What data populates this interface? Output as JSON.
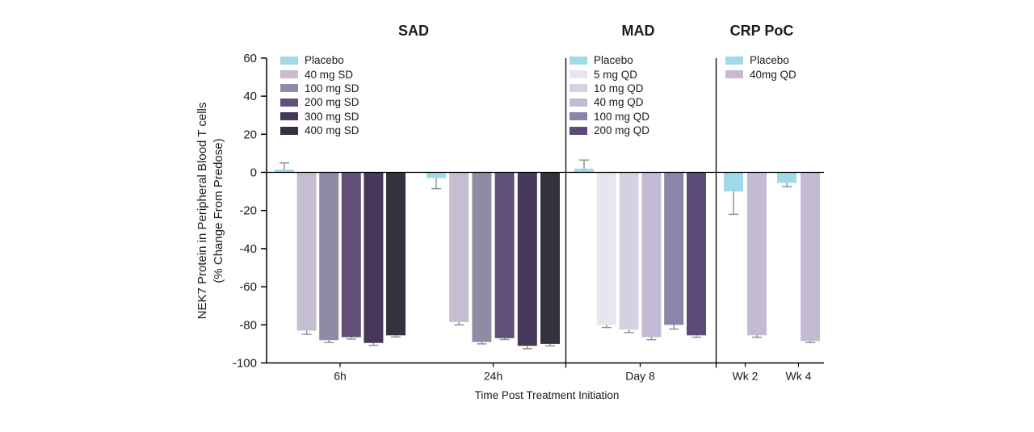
{
  "y_axis": {
    "title_line1": "NEK7 Protein in Peripheral Blood T cells",
    "title_line2": "(% Change From Predose)"
  },
  "x_axis": {
    "title": "Time Post Treatment Initiation"
  },
  "colors": {
    "placebo": "#a0d9e8",
    "axis": "#000000",
    "text": "#1a1a1a",
    "error_bar": "#8b8b8b"
  },
  "chart_data": {
    "type": "bar",
    "ylabel": "NEK7 Protein in Peripheral Blood T cells (% Change From Predose)",
    "xlabel": "Time Post Treatment Initiation",
    "ylim": [
      -100,
      60
    ],
    "y_ticks": [
      60,
      40,
      20,
      0,
      -20,
      -40,
      -60,
      -80,
      -100
    ],
    "grid": false,
    "legend_position": "top-left-of-each-panel",
    "error_bar_color": "#8b8b8b",
    "panels": [
      {
        "title": "SAD",
        "series": [
          {
            "name": "Placebo",
            "color": "#a0d9e8"
          },
          {
            "name": "40 mg SD",
            "color": "#c5bed0"
          },
          {
            "name": "100 mg SD",
            "color": "#908ba5"
          },
          {
            "name": "200 mg SD",
            "color": "#614f78"
          },
          {
            "name": "300 mg SD",
            "color": "#463859"
          },
          {
            "name": "400 mg SD",
            "color": "#333340"
          }
        ],
        "groups": [
          {
            "label": "6h",
            "values": [
              1.5,
              -83,
              -88,
              -86.5,
              -89.5,
              -85.5
            ],
            "errors": [
              3.5,
              2,
              1.3,
              1,
              1.2,
              0.8
            ]
          },
          {
            "label": "24h",
            "values": [
              -3,
              -78.5,
              -89,
              -87,
              -91,
              -90
            ],
            "errors": [
              5.5,
              1.5,
              1,
              0.7,
              1.5,
              1
            ]
          }
        ]
      },
      {
        "title": "MAD",
        "series": [
          {
            "name": "Placebo",
            "color": "#a0d9e8"
          },
          {
            "name": "5 mg QD",
            "color": "#e7e6ee"
          },
          {
            "name": "10 mg QD",
            "color": "#d4d1e1"
          },
          {
            "name": "40 mg QD",
            "color": "#c3bad4"
          },
          {
            "name": "100 mg QD",
            "color": "#8b85a7"
          },
          {
            "name": "200 mg QD",
            "color": "#5c4a78"
          }
        ],
        "groups": [
          {
            "label": "Day 8",
            "values": [
              2,
              -80,
              -82.5,
              -86.5,
              -80,
              -85.5
            ],
            "errors": [
              4.5,
              1.4,
              1.5,
              1.3,
              2.2,
              1
            ]
          }
        ]
      },
      {
        "title": "CRP PoC",
        "series": [
          {
            "name": "Placebo",
            "color": "#a0d9e8"
          },
          {
            "name": "40mg QD",
            "color": "#c3bad4"
          }
        ],
        "groups": [
          {
            "label": "Wk 2",
            "values": [
              -10,
              -85.5
            ],
            "errors": [
              12,
              1
            ]
          },
          {
            "label": "Wk 4",
            "values": [
              -5.5,
              -88.5
            ],
            "errors": [
              2,
              0.8
            ]
          }
        ]
      }
    ]
  }
}
